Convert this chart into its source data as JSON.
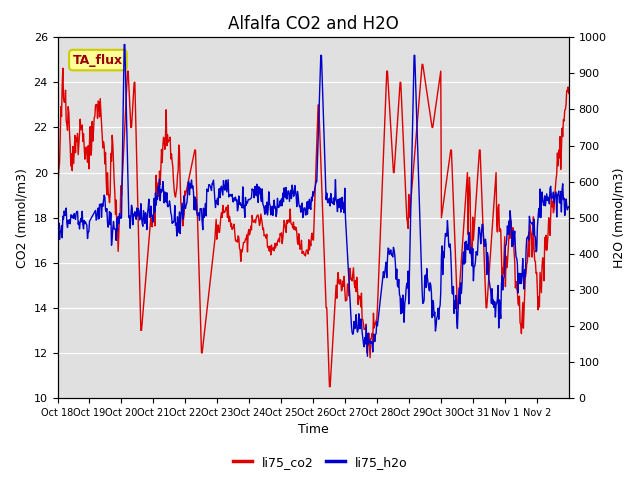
{
  "title": "Alfalfa CO2 and H2O",
  "xlabel": "Time",
  "ylabel_left": "CO2 (mmol/m3)",
  "ylabel_right": "H2O (mmol/m3)",
  "ylim_left": [
    10,
    26
  ],
  "ylim_right": [
    0,
    1000
  ],
  "yticks_left": [
    10,
    12,
    14,
    16,
    18,
    20,
    22,
    24,
    26
  ],
  "yticks_right": [
    0,
    100,
    200,
    300,
    400,
    500,
    600,
    700,
    800,
    900,
    1000
  ],
  "xtick_labels": [
    "Oct 18",
    "Oct 19",
    "Oct 20",
    "Oct 21",
    "Oct 22",
    "Oct 23",
    "Oct 24",
    "Oct 25",
    "Oct 26",
    "Oct 27",
    "Oct 28",
    "Oct 29",
    "Oct 30",
    "Oct 31",
    "Nov 1",
    "Nov 2"
  ],
  "color_co2": "#dd0000",
  "color_h2o": "#0000cc",
  "legend_label_co2": "li75_co2",
  "legend_label_h2o": "li75_h2o",
  "annotation_text": "TA_flux",
  "background_color": "#e0e0e0",
  "title_fontsize": 12,
  "axis_fontsize": 9,
  "tick_fontsize": 8,
  "legend_fontsize": 9,
  "line_width": 1.0
}
